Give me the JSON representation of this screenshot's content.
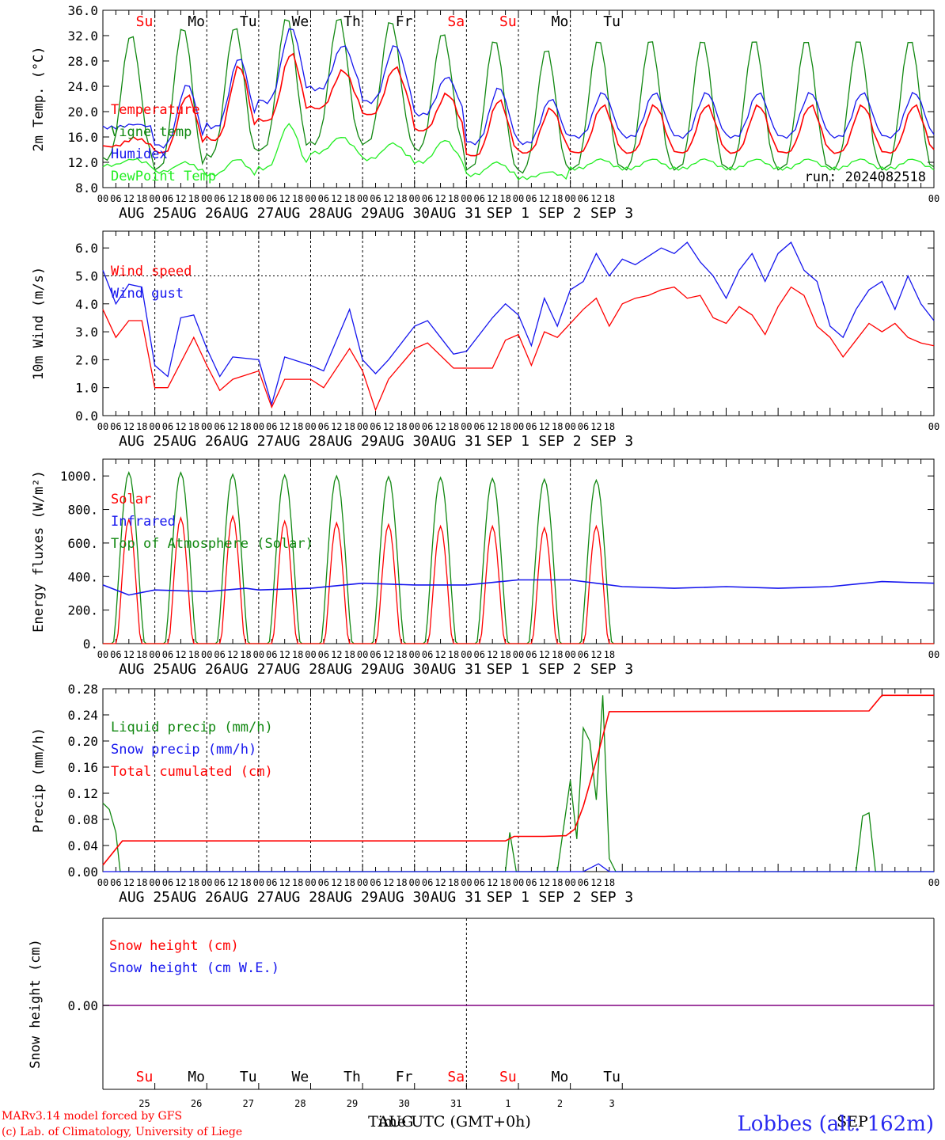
{
  "colors": {
    "red": "#ff0000",
    "green": "#118811",
    "blue": "#1515ee",
    "light_green": "#22ee22",
    "purple": "#800080",
    "black": "#000000"
  },
  "x_axis": {
    "hour_labels": [
      "00",
      "06",
      "12",
      "18"
    ],
    "date_labels": [
      "AUG 25",
      "AUG 26",
      "AUG 27",
      "AUG 28",
      "AUG 29",
      "AUG 30",
      "AUG 31",
      "SEP  1",
      "SEP  2",
      "SEP  3"
    ],
    "end_label": "00",
    "days_of_week": [
      {
        "label": "Su",
        "color": "red"
      },
      {
        "label": "Mo",
        "color": "black"
      },
      {
        "label": "Tu",
        "color": "black"
      },
      {
        "label": "We",
        "color": "black"
      },
      {
        "label": "Th",
        "color": "black"
      },
      {
        "label": "Fr",
        "color": "black"
      },
      {
        "label": "Sa",
        "color": "red"
      },
      {
        "label": "Su",
        "color": "red"
      },
      {
        "label": "Mo",
        "color": "black"
      },
      {
        "label": "Tu",
        "color": "black"
      }
    ],
    "day_numbers": [
      "25",
      "26",
      "27",
      "28",
      "29",
      "30",
      "31",
      "1",
      "2",
      "3"
    ]
  },
  "chart_data": [
    {
      "type": "line",
      "ylabel": "2m Temp. (°C)",
      "ylim": [
        8,
        36
      ],
      "yticks": [
        "8.0",
        "12.0",
        "16.0",
        "20.0",
        "24.0",
        "28.0",
        "32.0",
        "36.0"
      ],
      "annotation": "run: 2024082518",
      "series": [
        {
          "name": "Temperature",
          "color": "red",
          "daily": {
            "base": [
              14.5,
              13.5,
              15.5,
              18.5,
              20.5,
              19.5,
              17.0,
              13.0,
              13.5,
              13.5
            ],
            "peak": [
              15.8,
              22.6,
              27.2,
              29.2,
              26.5,
              27.0,
              22.8,
              21.8,
              20.5,
              21.0
            ]
          }
        },
        {
          "name": "Vigne temp",
          "color": "green",
          "daily": {
            "base": [
              12.5,
              11.0,
              13.0,
              14.0,
              15.0,
              15.0,
              14.0,
              11.0,
              10.5,
              11.0
            ],
            "peak": [
              32.2,
              33.5,
              33.5,
              35.0,
              35.0,
              34.5,
              32.5,
              31.5,
              30.0,
              31.5
            ]
          }
        },
        {
          "name": "Humidex",
          "color": "blue",
          "daily": {
            "base": [
              17.5,
              14.5,
              17.5,
              21.5,
              23.5,
              21.5,
              19.5,
              15.0,
              15.0,
              16.0
            ],
            "peak": [
              18.0,
              24.3,
              28.5,
              33.3,
              30.5,
              30.5,
              25.5,
              23.8,
              22.0,
              23.0
            ]
          }
        },
        {
          "name": "DewPoint Temp",
          "color": "light_green",
          "daily": {
            "base": [
              11.5,
              10.5,
              10.0,
              11.0,
              13.5,
              12.5,
              12.0,
              10.0,
              9.5,
              11.0
            ],
            "peak": [
              12.5,
              12.0,
              12.5,
              18.0,
              16.0,
              15.0,
              15.5,
              12.0,
              10.5,
              12.5
            ]
          }
        }
      ]
    },
    {
      "type": "line",
      "ylabel": "10m Wind (m/s)",
      "ylim": [
        0,
        6.6
      ],
      "yticks": [
        "0.0",
        "1.0",
        "2.0",
        "3.0",
        "4.0",
        "5.0",
        "6.0"
      ],
      "reference_line": 5.0,
      "series": [
        {
          "name": "Wind speed",
          "color": "red",
          "points": [
            [
              0,
              3.8
            ],
            [
              6,
              2.8
            ],
            [
              12,
              3.4
            ],
            [
              18,
              3.4
            ],
            [
              24,
              1.0
            ],
            [
              30,
              1.0
            ],
            [
              42,
              2.8
            ],
            [
              48,
              1.8
            ],
            [
              54,
              0.9
            ],
            [
              60,
              1.3
            ],
            [
              72,
              1.6
            ],
            [
              78,
              0.3
            ],
            [
              84,
              1.3
            ],
            [
              96,
              1.3
            ],
            [
              102,
              1.0
            ],
            [
              114,
              2.4
            ],
            [
              120,
              1.6
            ],
            [
              126,
              0.2
            ],
            [
              132,
              1.3
            ],
            [
              144,
              2.4
            ],
            [
              150,
              2.6
            ],
            [
              162,
              1.7
            ],
            [
              180,
              1.7
            ],
            [
              186,
              2.7
            ],
            [
              192,
              2.9
            ],
            [
              198,
              1.8
            ],
            [
              204,
              3.0
            ],
            [
              210,
              2.8
            ],
            [
              222,
              3.8
            ],
            [
              228,
              4.2
            ],
            [
              234,
              3.2
            ],
            [
              240,
              4.0
            ],
            [
              246,
              4.2
            ],
            [
              252,
              4.3
            ],
            [
              258,
              4.5
            ],
            [
              264,
              4.6
            ],
            [
              270,
              4.2
            ],
            [
              276,
              4.3
            ],
            [
              282,
              3.5
            ],
            [
              288,
              3.3
            ],
            [
              294,
              3.9
            ],
            [
              300,
              3.6
            ],
            [
              306,
              2.9
            ],
            [
              312,
              3.9
            ],
            [
              318,
              4.6
            ],
            [
              324,
              4.3
            ],
            [
              330,
              3.2
            ],
            [
              336,
              2.8
            ],
            [
              342,
              2.1
            ],
            [
              348,
              2.7
            ],
            [
              354,
              3.3
            ],
            [
              360,
              3.0
            ],
            [
              366,
              3.3
            ],
            [
              372,
              2.8
            ],
            [
              378,
              2.6
            ],
            [
              384,
              2.5
            ]
          ]
        },
        {
          "name": "Wind gust",
          "color": "blue",
          "points": [
            [
              0,
              5.2
            ],
            [
              6,
              4.0
            ],
            [
              12,
              4.7
            ],
            [
              18,
              4.6
            ],
            [
              24,
              1.8
            ],
            [
              30,
              1.4
            ],
            [
              36,
              3.5
            ],
            [
              42,
              3.6
            ],
            [
              48,
              2.4
            ],
            [
              54,
              1.4
            ],
            [
              60,
              2.1
            ],
            [
              72,
              2.0
            ],
            [
              78,
              0.4
            ],
            [
              84,
              2.1
            ],
            [
              96,
              1.8
            ],
            [
              102,
              1.6
            ],
            [
              114,
              3.8
            ],
            [
              120,
              2.0
            ],
            [
              126,
              1.5
            ],
            [
              132,
              2.0
            ],
            [
              144,
              3.2
            ],
            [
              150,
              3.4
            ],
            [
              156,
              2.8
            ],
            [
              162,
              2.2
            ],
            [
              168,
              2.3
            ],
            [
              180,
              3.5
            ],
            [
              186,
              4.0
            ],
            [
              192,
              3.6
            ],
            [
              198,
              2.5
            ],
            [
              204,
              4.2
            ],
            [
              210,
              3.2
            ],
            [
              216,
              4.5
            ],
            [
              222,
              4.8
            ],
            [
              228,
              5.8
            ],
            [
              234,
              5.0
            ],
            [
              240,
              5.6
            ],
            [
              246,
              5.4
            ],
            [
              252,
              5.7
            ],
            [
              258,
              6.0
            ],
            [
              264,
              5.8
            ],
            [
              270,
              6.2
            ],
            [
              276,
              5.5
            ],
            [
              282,
              5.0
            ],
            [
              288,
              4.2
            ],
            [
              294,
              5.2
            ],
            [
              300,
              5.8
            ],
            [
              306,
              4.8
            ],
            [
              312,
              5.8
            ],
            [
              318,
              6.2
            ],
            [
              324,
              5.2
            ],
            [
              330,
              4.8
            ],
            [
              336,
              3.2
            ],
            [
              342,
              2.8
            ],
            [
              348,
              3.8
            ],
            [
              354,
              4.5
            ],
            [
              360,
              4.8
            ],
            [
              366,
              3.8
            ],
            [
              372,
              5.0
            ],
            [
              378,
              4.0
            ],
            [
              384,
              3.4
            ]
          ]
        }
      ]
    },
    {
      "type": "line",
      "ylabel": "Energy fluxes (W/m²)",
      "ylim": [
        0,
        1100
      ],
      "yticks": [
        "0.",
        "200.",
        "400.",
        "600.",
        "800.",
        "1000."
      ],
      "series": [
        {
          "name": "Solar",
          "color": "red",
          "daily_peak": [
            740,
            750,
            760,
            730,
            720,
            710,
            700,
            700,
            690,
            700
          ]
        },
        {
          "name": "Infrared",
          "color": "blue",
          "points": [
            [
              0,
              350
            ],
            [
              12,
              290
            ],
            [
              24,
              320
            ],
            [
              48,
              310
            ],
            [
              66,
              330
            ],
            [
              72,
              320
            ],
            [
              96,
              330
            ],
            [
              120,
              360
            ],
            [
              144,
              350
            ],
            [
              168,
              350
            ],
            [
              192,
              380
            ],
            [
              216,
              380
            ],
            [
              240,
              340
            ],
            [
              264,
              330
            ],
            [
              288,
              340
            ],
            [
              312,
              330
            ],
            [
              336,
              340
            ],
            [
              360,
              370
            ],
            [
              384,
              360
            ]
          ]
        },
        {
          "name": "Top of Atmosphere (Solar)",
          "color": "green",
          "daily_peak": [
            1020,
            1020,
            1010,
            1005,
            1000,
            995,
            990,
            985,
            980,
            975
          ]
        }
      ]
    },
    {
      "type": "line",
      "ylabel": "Precip (mm/h)",
      "ylim": [
        0,
        0.28
      ],
      "yticks": [
        "0.00",
        "0.04",
        "0.08",
        "0.12",
        "0.16",
        "0.20",
        "0.24",
        "0.28"
      ],
      "series": [
        {
          "name": "Liquid precip (mm/h)",
          "color": "green",
          "points": [
            [
              0,
              0.105
            ],
            [
              3,
              0.095
            ],
            [
              6,
              0.06
            ],
            [
              8,
              0
            ],
            [
              186,
              0
            ],
            [
              188,
              0.06
            ],
            [
              191,
              0
            ],
            [
              210,
              0
            ],
            [
              216,
              0.14
            ],
            [
              219,
              0.05
            ],
            [
              222,
              0.22
            ],
            [
              225,
              0.2
            ],
            [
              228,
              0.11
            ],
            [
              231,
              0.27
            ],
            [
              234,
              0.02
            ],
            [
              237,
              0
            ],
            [
              348,
              0
            ],
            [
              351,
              0.085
            ],
            [
              354,
              0.09
            ],
            [
              357,
              0
            ],
            [
              384,
              0
            ]
          ]
        },
        {
          "name": "Snow precip (mm/h)",
          "color": "blue",
          "points": [
            [
              0,
              0
            ],
            [
              222,
              0
            ],
            [
              229,
              0.012
            ],
            [
              234,
              0
            ],
            [
              384,
              0
            ]
          ]
        },
        {
          "name": "Total cumulated (cm)",
          "color": "red",
          "points": [
            [
              0,
              0.01
            ],
            [
              9,
              0.047
            ],
            [
              186,
              0.047
            ],
            [
              190,
              0.054
            ],
            [
              204,
              0.054
            ],
            [
              214,
              0.055
            ],
            [
              218,
              0.065
            ],
            [
              222,
              0.1
            ],
            [
              228,
              0.17
            ],
            [
              234,
              0.245
            ],
            [
              354,
              0.246
            ],
            [
              360,
              0.27
            ],
            [
              384,
              0.27
            ]
          ]
        }
      ]
    },
    {
      "type": "line",
      "ylabel": "Snow height (cm)",
      "yticks": [
        "0.00"
      ],
      "series": [
        {
          "name": "Snow height (cm)",
          "color": "red",
          "value": 0
        },
        {
          "name": "Snow height (cm W.E.)",
          "color": "blue",
          "value": 0
        }
      ]
    }
  ],
  "footer": {
    "credit_1": "MARv3.14 model forced by GFS",
    "credit_2": "(c) Lab. of Climatology, University of Liege",
    "x_title": "Time UTC (GMT+0h)",
    "month_1": "AUG",
    "month_2": "SEP",
    "station": "Lobbes (alt. 162m)"
  }
}
